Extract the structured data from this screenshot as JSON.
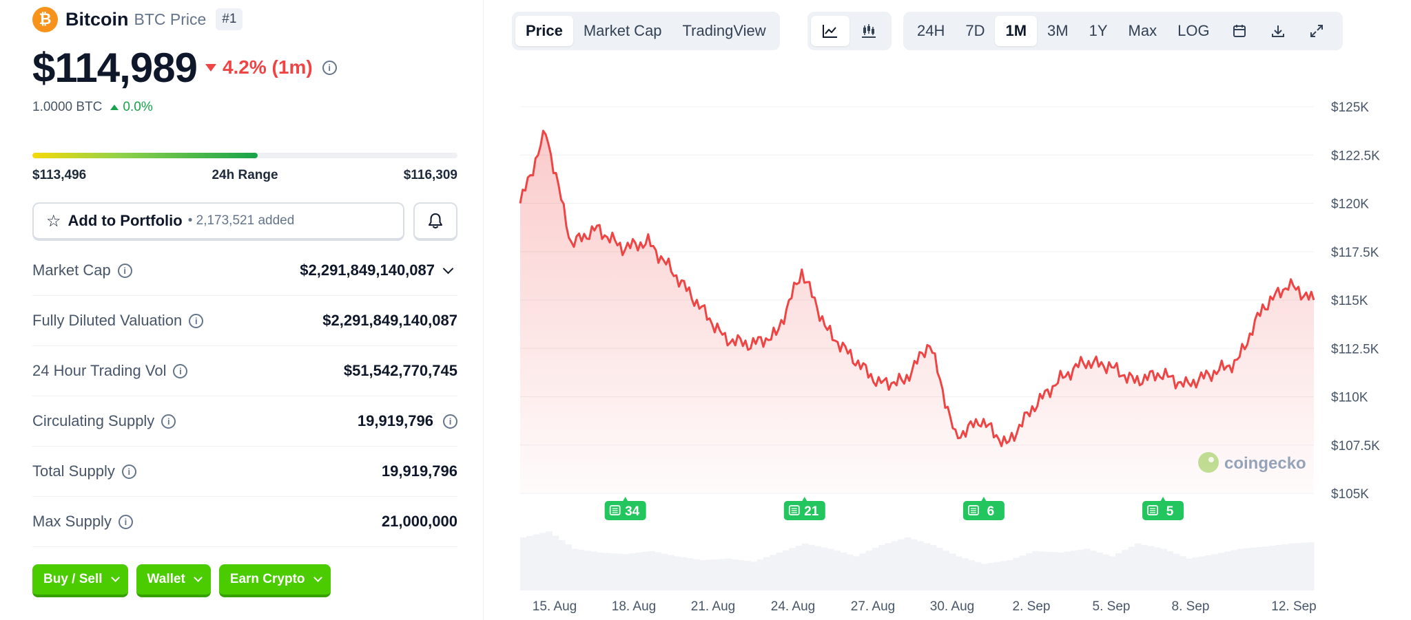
{
  "coin": {
    "logo_glyph": "₿",
    "name": "Bitcoin",
    "subtitle": "BTC Price",
    "rank": "#1",
    "price": "$114,989",
    "change": "4.2% (1m)",
    "change_color": "#ef4444",
    "btc_amount": "1.0000 BTC",
    "btc_change": "0.0%"
  },
  "range": {
    "low": "$113,496",
    "label": "24h Range",
    "high": "$116,309",
    "position_fraction": 0.53
  },
  "portfolio": {
    "button_label": "Add to Portfolio",
    "added_text": "• 2,173,521 added"
  },
  "stats": [
    {
      "label": "Market Cap",
      "value": "$2,291,849,140,087"
    },
    {
      "label": "Fully Diluted Valuation",
      "value": "$2,291,849,140,087"
    },
    {
      "label": "24 Hour Trading Vol",
      "value": "$51,542,770,745"
    },
    {
      "label": "Circulating Supply",
      "value": "19,919,796"
    },
    {
      "label": "Total Supply",
      "value": "19,919,796"
    },
    {
      "label": "Max Supply",
      "value": "21,000,000"
    }
  ],
  "actions": [
    {
      "label": "Buy / Sell"
    },
    {
      "label": "Wallet"
    },
    {
      "label": "Earn Crypto"
    }
  ],
  "toolbar": {
    "view_tabs": [
      "Price",
      "Market Cap",
      "TradingView"
    ],
    "active_view": "Price",
    "chart_type_icons": [
      "line-chart-icon",
      "candlestick-icon"
    ],
    "ranges": [
      "24H",
      "7D",
      "1M",
      "3M",
      "1Y",
      "Max",
      "LOG"
    ],
    "active_range": "1M",
    "tool_icons": [
      "calendar-icon",
      "download-icon",
      "expand-icon"
    ]
  },
  "watermark": "coingecko",
  "accent_green": "#4bcc00",
  "chart_data": {
    "type": "area",
    "x": [
      "13 Aug",
      "14 Aug",
      "15 Aug",
      "16 Aug",
      "17 Aug",
      "18 Aug",
      "19 Aug",
      "20 Aug",
      "21 Aug",
      "22 Aug",
      "23 Aug",
      "24 Aug",
      "25 Aug",
      "26 Aug",
      "27 Aug",
      "28 Aug",
      "29 Aug",
      "30 Aug",
      "31 Aug",
      "1 Sep",
      "2 Sep",
      "3 Sep",
      "4 Sep",
      "5 Sep",
      "6 Sep",
      "7 Sep",
      "8 Sep",
      "9 Sep",
      "10 Sep",
      "11 Sep",
      "12 Sep",
      "13 Sep"
    ],
    "series": [
      {
        "values": [
          120000,
          123700,
          117900,
          118700,
          117700,
          118000,
          116400,
          114700,
          113000,
          112700,
          113200,
          116500,
          113400,
          112000,
          110700,
          110800,
          112800,
          107900,
          108800,
          107500,
          109400,
          110800,
          111800,
          111600,
          110800,
          111200,
          110600,
          111200,
          111800,
          114600,
          115800,
          115000
        ]
      }
    ],
    "x_tick_labels": [
      "15. Aug",
      "18. Aug",
      "21. Aug",
      "24. Aug",
      "27. Aug",
      "30. Aug",
      "2. Sep",
      "5. Sep",
      "8. Sep",
      "12. Sep"
    ],
    "y_tick_labels": [
      "$125K",
      "$122.5K",
      "$120K",
      "$117.5K",
      "$115K",
      "$112.5K",
      "$110K",
      "$107.5K",
      "$105K"
    ],
    "y_ticks": [
      125000,
      122500,
      120000,
      117500,
      115000,
      112500,
      110000,
      107500,
      105000
    ],
    "ylim": [
      105000,
      125000
    ],
    "line_color": "#ef4444",
    "grid": true,
    "volume": [
      0.7,
      0.78,
      0.55,
      0.5,
      0.48,
      0.52,
      0.45,
      0.4,
      0.42,
      0.38,
      0.5,
      0.62,
      0.55,
      0.45,
      0.6,
      0.7,
      0.6,
      0.45,
      0.35,
      0.4,
      0.52,
      0.5,
      0.55,
      0.45,
      0.62,
      0.55,
      0.42,
      0.48,
      0.55,
      0.58,
      0.62,
      0.64
    ],
    "news_markers": [
      {
        "count": "34",
        "x_index": 4
      },
      {
        "count": "21",
        "x_index": 11
      },
      {
        "count": "6",
        "x_index": 18
      },
      {
        "count": "5",
        "x_index": 25
      }
    ]
  }
}
